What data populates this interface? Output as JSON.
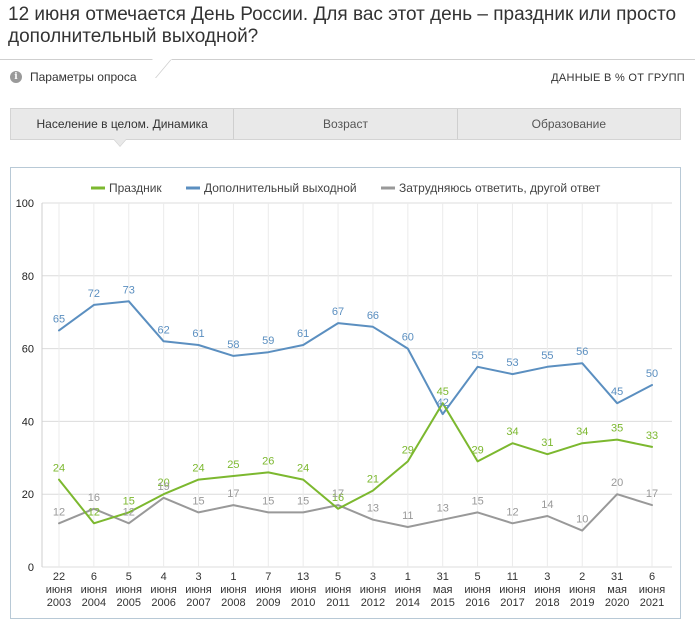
{
  "header": {
    "title": "12 июня отмечается День России. Для вас этот день – праздник или просто дополнительный выходной?",
    "params_label": "Параметры опроса",
    "units_label": "ДАННЫЕ В % ОТ ГРУПП"
  },
  "tabs": [
    {
      "label": "Население в целом. Динамика",
      "active": true
    },
    {
      "label": "Возраст",
      "active": false
    },
    {
      "label": "Образование",
      "active": false
    }
  ],
  "chart_data": {
    "type": "line",
    "ylim": [
      0,
      100
    ],
    "yticks": [
      0,
      20,
      40,
      60,
      80,
      100
    ],
    "grid": true,
    "legend_position": "top",
    "x": [
      [
        "22",
        "июня",
        "2003"
      ],
      [
        "6",
        "июня",
        "2004"
      ],
      [
        "5",
        "июня",
        "2005"
      ],
      [
        "4",
        "июня",
        "2006"
      ],
      [
        "3",
        "июня",
        "2007"
      ],
      [
        "1",
        "июня",
        "2008"
      ],
      [
        "7",
        "июня",
        "2009"
      ],
      [
        "13",
        "июня",
        "2010"
      ],
      [
        "5",
        "июня",
        "2011"
      ],
      [
        "3",
        "июня",
        "2012"
      ],
      [
        "1",
        "июня",
        "2014"
      ],
      [
        "31",
        "мая",
        "2015"
      ],
      [
        "5",
        "июня",
        "2016"
      ],
      [
        "11",
        "июня",
        "2017"
      ],
      [
        "3",
        "июня",
        "2018"
      ],
      [
        "2",
        "июня",
        "2019"
      ],
      [
        "31",
        "мая",
        "2020"
      ],
      [
        "6",
        "июня",
        "2021"
      ]
    ],
    "series": [
      {
        "name": "Праздник",
        "color": "#7cb82f",
        "values": [
          24,
          12,
          15,
          20,
          24,
          25,
          26,
          24,
          16,
          21,
          29,
          45,
          29,
          34,
          31,
          34,
          35,
          33
        ]
      },
      {
        "name": "Дополнительный выходной",
        "color": "#5b8fc0",
        "values": [
          65,
          72,
          73,
          62,
          61,
          58,
          59,
          61,
          67,
          66,
          60,
          42,
          55,
          53,
          55,
          56,
          45,
          50
        ]
      },
      {
        "name": "Затрудняюсь ответить, другой ответ",
        "color": "#999999",
        "values": [
          12,
          16,
          12,
          19,
          15,
          17,
          15,
          15,
          17,
          13,
          11,
          13,
          15,
          12,
          14,
          10,
          20,
          17
        ]
      }
    ]
  }
}
